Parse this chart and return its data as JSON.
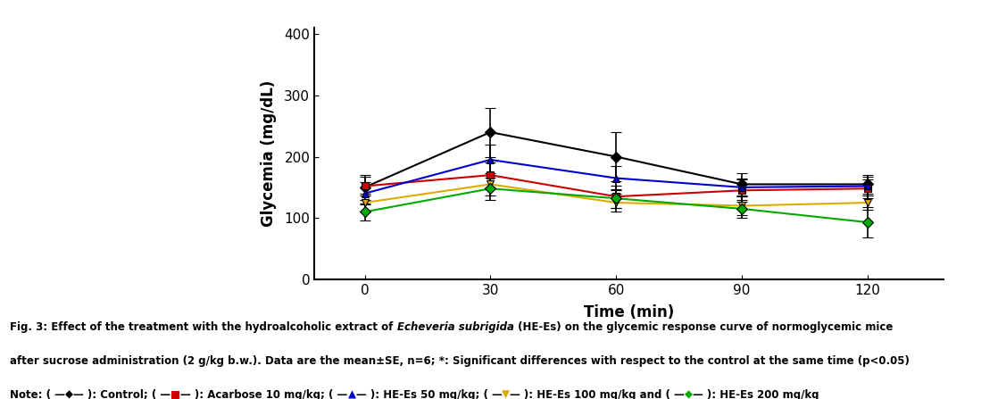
{
  "x": [
    0,
    30,
    60,
    90,
    120
  ],
  "series": [
    {
      "label": "Control",
      "color": "#000000",
      "marker": "D",
      "values": [
        150,
        240,
        200,
        155,
        155
      ],
      "errors": [
        20,
        40,
        40,
        18,
        15
      ]
    },
    {
      "label": "Acarbose 10 mg/kg",
      "color": "#cc0000",
      "marker": "s",
      "values": [
        152,
        170,
        135,
        145,
        148
      ],
      "errors": [
        15,
        20,
        18,
        18,
        15
      ]
    },
    {
      "label": "HE-Es 50 mg/kg",
      "color": "#0000cc",
      "marker": "^",
      "values": [
        140,
        195,
        165,
        150,
        152
      ],
      "errors": [
        18,
        25,
        20,
        15,
        15
      ]
    },
    {
      "label": "HE-Es 100 mg/kg",
      "color": "#ddaa00",
      "marker": "v",
      "values": [
        125,
        155,
        125,
        120,
        125
      ],
      "errors": [
        15,
        18,
        15,
        15,
        12
      ]
    },
    {
      "label": "HE-Es 200 mg/kg",
      "color": "#00aa00",
      "marker": "D",
      "values": [
        110,
        148,
        132,
        115,
        93
      ],
      "errors": [
        14,
        18,
        15,
        15,
        25
      ]
    }
  ],
  "xlabel": "Time (min)",
  "ylabel": "Glycemia (mg/dL)",
  "xlim": [
    -12,
    138
  ],
  "ylim": [
    0,
    410
  ],
  "yticks": [
    0,
    100,
    200,
    300,
    400
  ],
  "xticks": [
    0,
    30,
    60,
    90,
    120
  ],
  "fs_caption": 8.5,
  "fs_axis_label": 12,
  "fs_tick": 11
}
